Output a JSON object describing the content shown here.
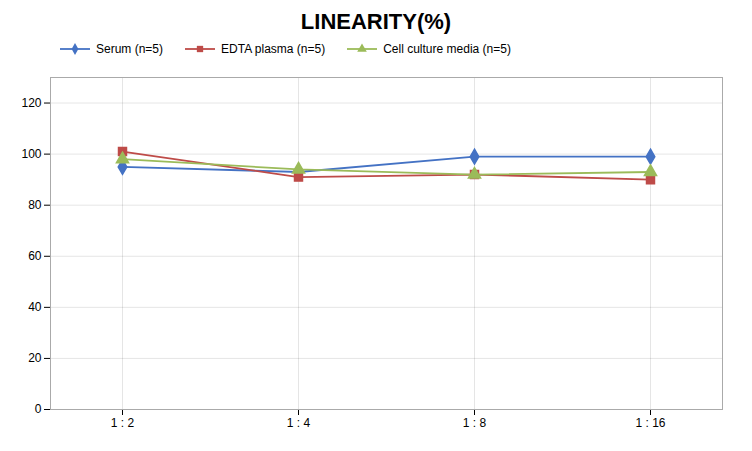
{
  "chart_data": {
    "type": "line",
    "title": "LINEARITY(%)",
    "categories": [
      "1 : 2",
      "1 : 4",
      "1 : 8",
      "1 : 16"
    ],
    "series": [
      {
        "name": "Serum (n=5)",
        "color": "#4472C4",
        "marker": "diamond",
        "values": [
          95,
          93,
          99,
          99
        ]
      },
      {
        "name": "EDTA plasma (n=5)",
        "color": "#BE4B48",
        "marker": "square",
        "values": [
          101,
          91,
          92,
          90
        ]
      },
      {
        "name": "Cell culture media (n=5)",
        "color": "#9BBB59",
        "marker": "triangle",
        "values": [
          98,
          94,
          92,
          93
        ]
      }
    ],
    "ylim": [
      0,
      130
    ],
    "yticks": [
      0,
      20,
      40,
      60,
      80,
      100,
      120
    ],
    "grid": true,
    "legend": "top"
  }
}
